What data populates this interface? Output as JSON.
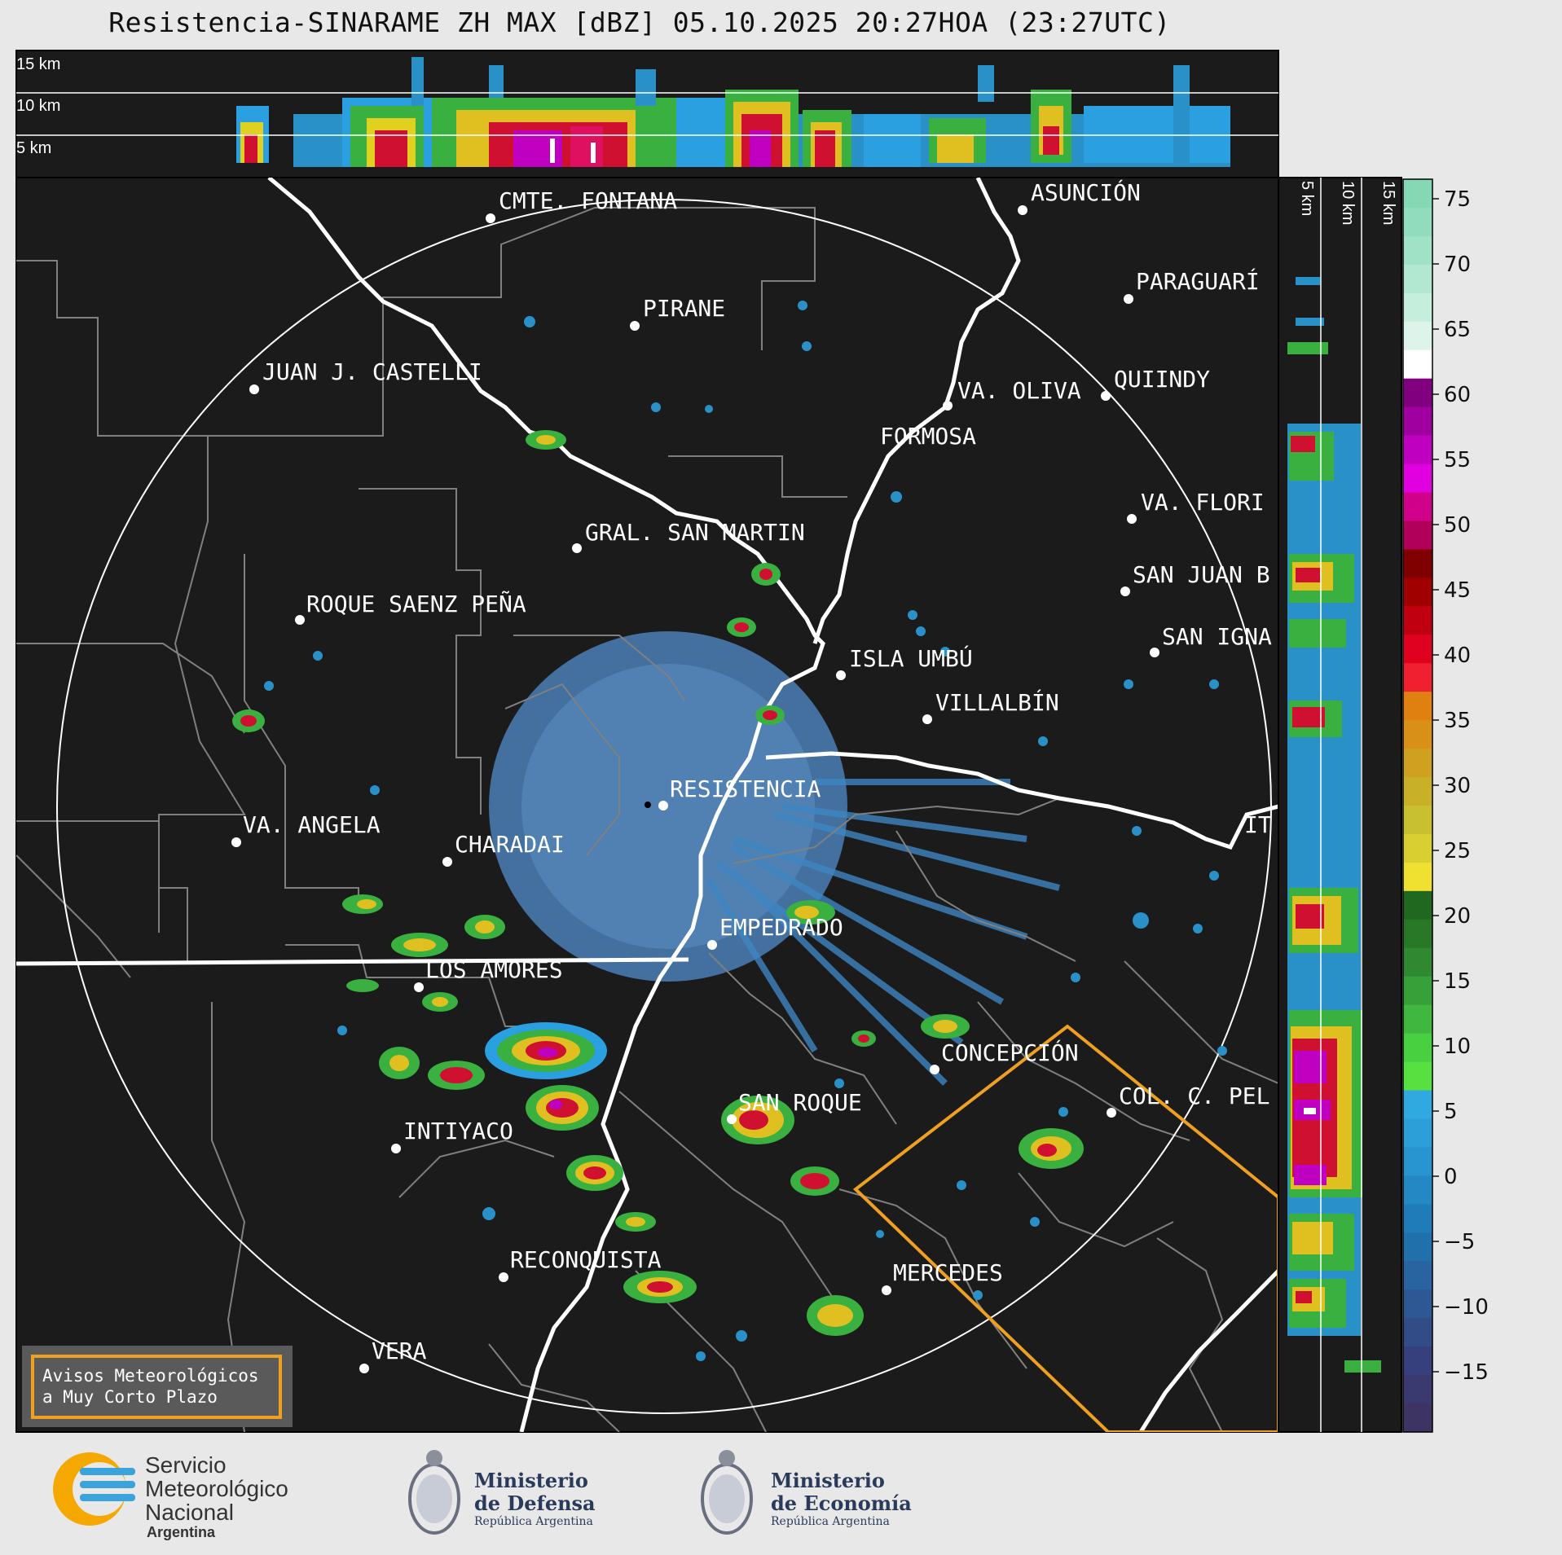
{
  "header": {
    "title": "Resistencia-SINARAME ZH MAX [dBZ] 05.10.2025 20:27HOA (23:27UTC)"
  },
  "top_panel": {
    "height_labels": [
      "15 km",
      "10 km",
      "5 km"
    ]
  },
  "side_panel": {
    "height_labels": [
      "5 km",
      "10 km",
      "15 km"
    ]
  },
  "colorbar": {
    "ticks": [
      "75",
      "70",
      "65",
      "60",
      "55",
      "50",
      "45",
      "40",
      "35",
      "30",
      "25",
      "20",
      "15",
      "10",
      "5",
      "0",
      "−5",
      "−10",
      "−15"
    ]
  },
  "map": {
    "radar_site": "RESISTENCIA",
    "cities": [
      {
        "name": "CMTE. FONTANA"
      },
      {
        "name": "ASUNCIÓN"
      },
      {
        "name": "PARAGUARÍ"
      },
      {
        "name": "PIRANE"
      },
      {
        "name": "JUAN J. CASTELLI"
      },
      {
        "name": "VA. OLIVA"
      },
      {
        "name": "QUIINDY"
      },
      {
        "name": "FORMOSA"
      },
      {
        "name": "VA. FLORI"
      },
      {
        "name": "GRAL. SAN MARTIN"
      },
      {
        "name": "SAN JUAN B"
      },
      {
        "name": "ROQUE SAENZ PEÑA"
      },
      {
        "name": "SAN IGNA"
      },
      {
        "name": "ISLA UMBÚ"
      },
      {
        "name": "VILLALBÍN"
      },
      {
        "name": "RESISTENCIA"
      },
      {
        "name": "IT"
      },
      {
        "name": "VA. ANGELA"
      },
      {
        "name": "CHARADAI"
      },
      {
        "name": "EMPEDRADO"
      },
      {
        "name": "LOS AMORES"
      },
      {
        "name": "CONCEPCIÓN"
      },
      {
        "name": "COL. C. PEL"
      },
      {
        "name": "SAN ROQUE"
      },
      {
        "name": "INTIYACO"
      },
      {
        "name": "RECONQUISTA"
      },
      {
        "name": "MERCEDES"
      },
      {
        "name": "VERA"
      }
    ]
  },
  "warning_box": {
    "line1": "Avisos Meteorológicos",
    "line2": "a Muy Corto Plazo"
  },
  "footer": {
    "smn_line1": "Servicio",
    "smn_line2": "Meteorológico",
    "smn_line3": "Nacional",
    "smn_line4": "Argentina",
    "defensa_line1": "Ministerio",
    "defensa_line2": "de Defensa",
    "defensa_sub": "República Argentina",
    "economia_line1": "Ministerio",
    "economia_line2": "de Economía",
    "economia_sub": "República Argentina"
  },
  "colors": {
    "map_background": "#1b1b1b",
    "river": "#ffffff",
    "borders": "#808080",
    "warning_polygon": "#f0a020",
    "low_echo": "#4a7fb5",
    "moderate_echo": "#3aaa3a",
    "strong_echo": "#e02020",
    "extreme_echo": "#d000d0"
  }
}
